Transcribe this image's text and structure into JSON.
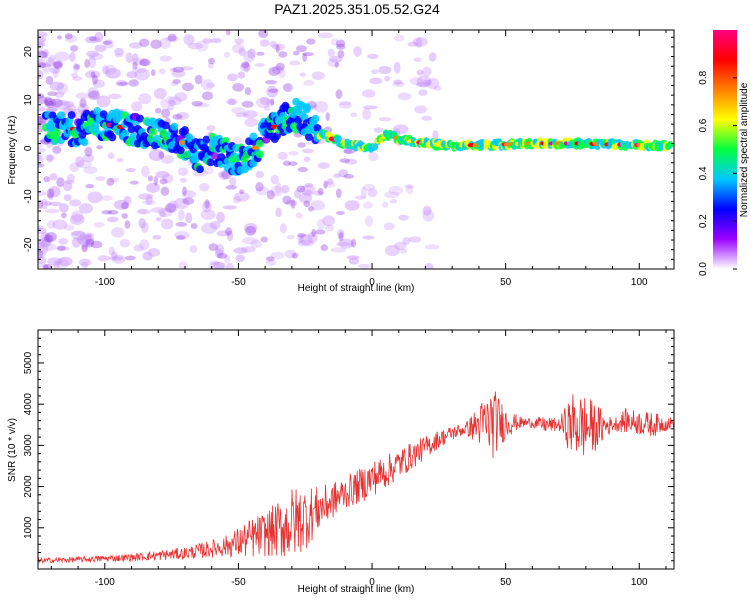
{
  "title": "PAZ1.2025.351.05.52.G24",
  "chart_data": [
    {
      "type": "heatmap",
      "xlabel": "Height of straight line (km)",
      "ylabel": "Frequency (Hz)",
      "xlim": [
        -125,
        113
      ],
      "ylim": [
        -25,
        24.5
      ],
      "xticks": [
        -100,
        -50,
        0,
        50,
        100
      ],
      "yticks": [
        -20,
        -10,
        0,
        10,
        20
      ],
      "colorbar": {
        "label": "Normalized spectral amplitude",
        "range": [
          0,
          1
        ],
        "ticks": [
          "0.0",
          "0.2",
          "0.4",
          "0.6",
          "0.8"
        ],
        "colors": [
          "#ffffff",
          "#9b00ff",
          "#0000ff",
          "#00c8ff",
          "#00ff40",
          "#ffff00",
          "#ff8000",
          "#ff0000",
          "#ff0080"
        ]
      },
      "ridge": {
        "x": [
          -110,
          -100,
          -90,
          -80,
          -70,
          -65,
          -60,
          -55,
          -50,
          -45,
          -40,
          -35,
          -30,
          -25,
          -20,
          -15,
          -10,
          -5,
          0,
          5,
          10,
          20,
          30,
          40,
          50,
          60,
          70,
          80,
          90,
          100,
          110
        ],
        "y": [
          4,
          5,
          4,
          3,
          1,
          -2,
          0,
          -1,
          -3,
          -1,
          3,
          5,
          7,
          6,
          3,
          2,
          1,
          0.5,
          0,
          3,
          2,
          1,
          0.5,
          0.7,
          0.8,
          1,
          1,
          1,
          0.8,
          0.7,
          0.5
        ]
      }
    },
    {
      "type": "line",
      "xlabel": "Height of straight line (km)",
      "ylabel": "SNR (10 * v/v)",
      "xlim": [
        -125,
        113
      ],
      "ylim": [
        0,
        5800
      ],
      "xticks": [
        -100,
        -50,
        0,
        50,
        100
      ],
      "yticks": [
        1000,
        2000,
        3000,
        4000,
        5000
      ],
      "color": "#e83232",
      "envelope": {
        "x": [
          -125,
          -110,
          -90,
          -70,
          -55,
          -45,
          -40,
          -35,
          -30,
          -25,
          -20,
          -15,
          -10,
          -5,
          0,
          5,
          10,
          15,
          20,
          25,
          30,
          35,
          40,
          45,
          50,
          55,
          60,
          65,
          70,
          75,
          80,
          85,
          90,
          95,
          100,
          105,
          113
        ],
        "mean": [
          200,
          230,
          280,
          380,
          550,
          750,
          850,
          950,
          1100,
          1250,
          1450,
          1650,
          1850,
          2000,
          2200,
          2350,
          2550,
          2750,
          2950,
          3150,
          3300,
          3400,
          3500,
          3550,
          3550,
          3550,
          3550,
          3500,
          3500,
          3500,
          3450,
          3450,
          3500,
          3600,
          3550,
          3500,
          3550
        ],
        "spread": [
          60,
          70,
          90,
          150,
          250,
          500,
          550,
          700,
          900,
          800,
          550,
          450,
          400,
          420,
          450,
          400,
          380,
          330,
          280,
          220,
          180,
          150,
          500,
          900,
          400,
          150,
          120,
          200,
          150,
          800,
          800,
          500,
          150,
          300,
          300,
          300,
          120
        ]
      }
    }
  ]
}
